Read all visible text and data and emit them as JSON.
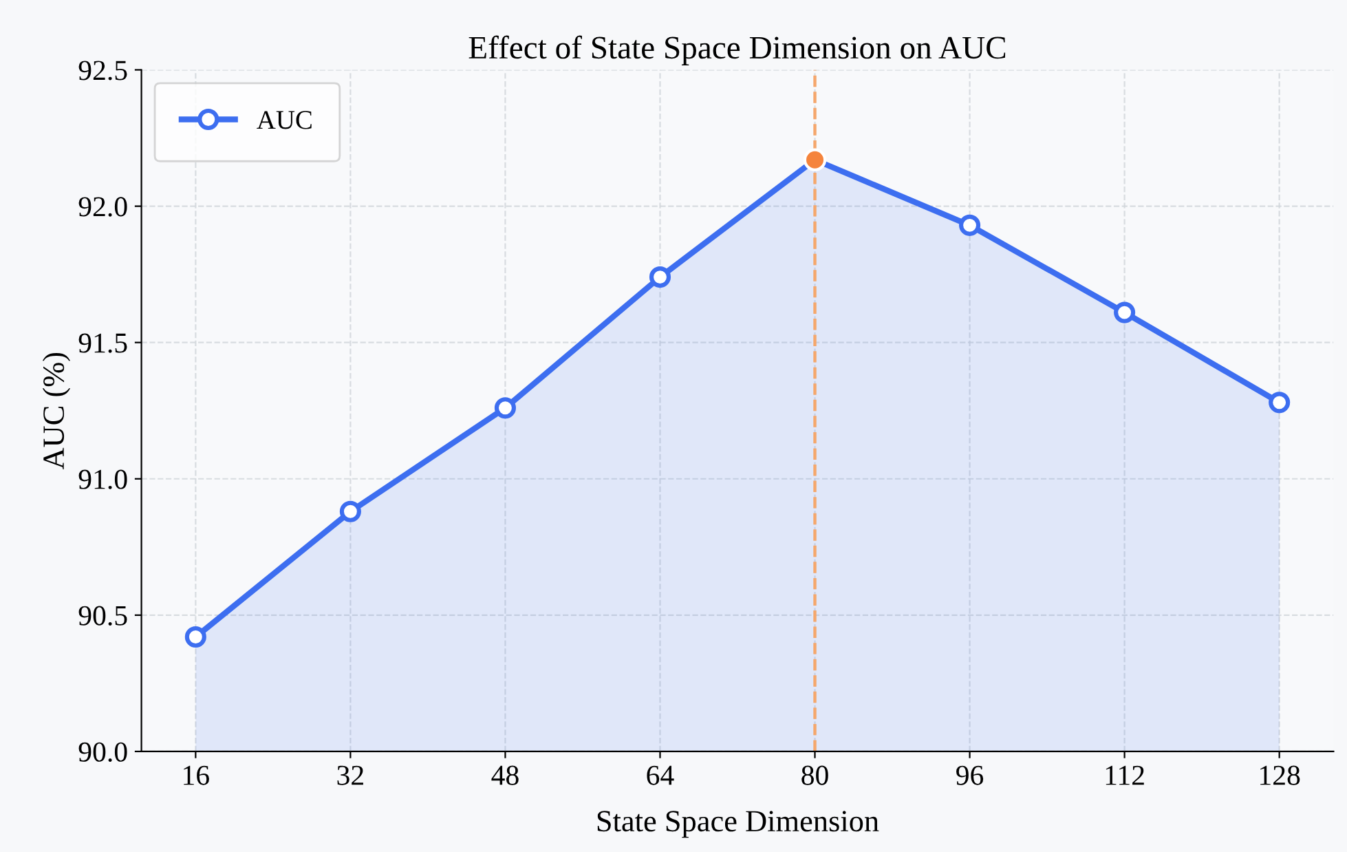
{
  "chart_data": {
    "type": "area",
    "title": "Effect of State Space Dimension on AUC",
    "xlabel": "State Space Dimension",
    "ylabel": "AUC (%)",
    "x": [
      16,
      32,
      48,
      64,
      80,
      96,
      112,
      128
    ],
    "series": [
      {
        "name": "AUC",
        "color": "#3d6ef0",
        "values": [
          90.42,
          90.88,
          91.26,
          91.74,
          92.17,
          91.93,
          91.61,
          91.28
        ],
        "marker": "circle"
      },
      {
        "type": "scatter",
        "color": "#f5843c",
        "x": [
          80
        ],
        "values": [
          92.17
        ],
        "marker": "circle"
      }
    ],
    "ref_lines": [
      {
        "axis": "x",
        "value": 80,
        "color": "#f5a76c",
        "line_style": "dashed"
      }
    ],
    "xlim": [
      10.4,
      133.6
    ],
    "ylim": [
      90.0,
      92.5
    ],
    "xticks": [
      16,
      32,
      48,
      64,
      80,
      96,
      112,
      128
    ],
    "yticks": [
      {
        "value": 90.0,
        "label": "90.0"
      },
      {
        "value": 90.5,
        "label": "90.5"
      },
      {
        "value": 91.0,
        "label": "91.0"
      },
      {
        "value": 91.5,
        "label": "91.5"
      },
      {
        "value": 92.0,
        "label": "92.0"
      },
      {
        "value": 92.5,
        "label": "92.5"
      }
    ],
    "grid": true,
    "legend": "top left",
    "line_style": "solid"
  }
}
